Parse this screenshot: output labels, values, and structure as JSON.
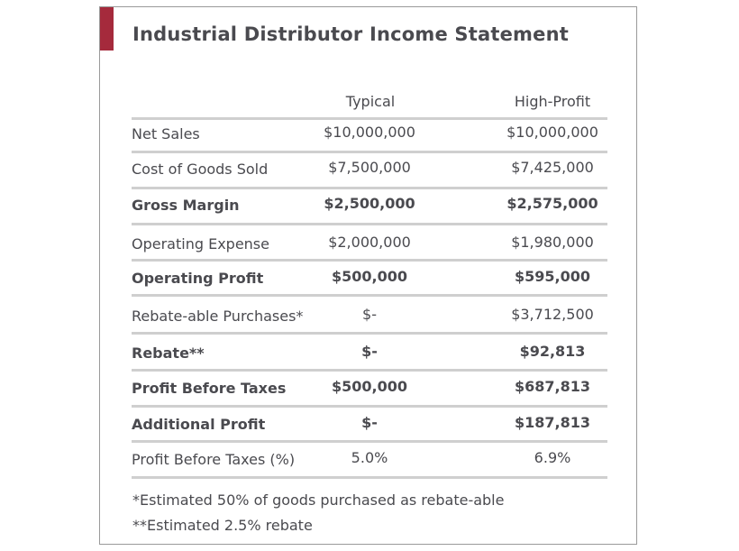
{
  "title": "Industrial Distributor Income Statement",
  "colors": {
    "accent": "#a52a3c",
    "rule": "#cfcfcf",
    "text": "#4a4a4f"
  },
  "columns": {
    "typical": "Typical",
    "high_profit": "High-Profit"
  },
  "rows": [
    {
      "label": "Net Sales",
      "typical": "$10,000,000",
      "high_profit": "$10,000,000",
      "bold": false
    },
    {
      "label": "Cost of Goods Sold",
      "typical": "$7,500,000",
      "high_profit": "$7,425,000",
      "bold": false
    },
    {
      "label": "Gross Margin",
      "typical": "$2,500,000",
      "high_profit": "$2,575,000",
      "bold": true
    },
    {
      "label": "Operating Expense",
      "typical": "$2,000,000",
      "high_profit": "$1,980,000",
      "bold": false
    },
    {
      "label": "Operating Profit",
      "typical": "$500,000",
      "high_profit": "$595,000",
      "bold": true
    },
    {
      "label": "Rebate-able Purchases*",
      "typical": "$-",
      "high_profit": "$3,712,500",
      "bold": false
    },
    {
      "label": "Rebate**",
      "typical": "$-",
      "high_profit": "$92,813",
      "bold": true
    },
    {
      "label": "Profit Before Taxes",
      "typical": "$500,000",
      "high_profit": "$687,813",
      "bold": true
    },
    {
      "label": "Additional Profit",
      "typical": "$-",
      "high_profit": "$187,813",
      "bold": true
    },
    {
      "label": "Profit Before Taxes (%)",
      "typical": "5.0%",
      "high_profit": "6.9%",
      "bold": false
    }
  ],
  "footnotes": [
    "*Estimated 50% of goods purchased as rebate-able",
    "**Estimated 2.5% rebate"
  ]
}
